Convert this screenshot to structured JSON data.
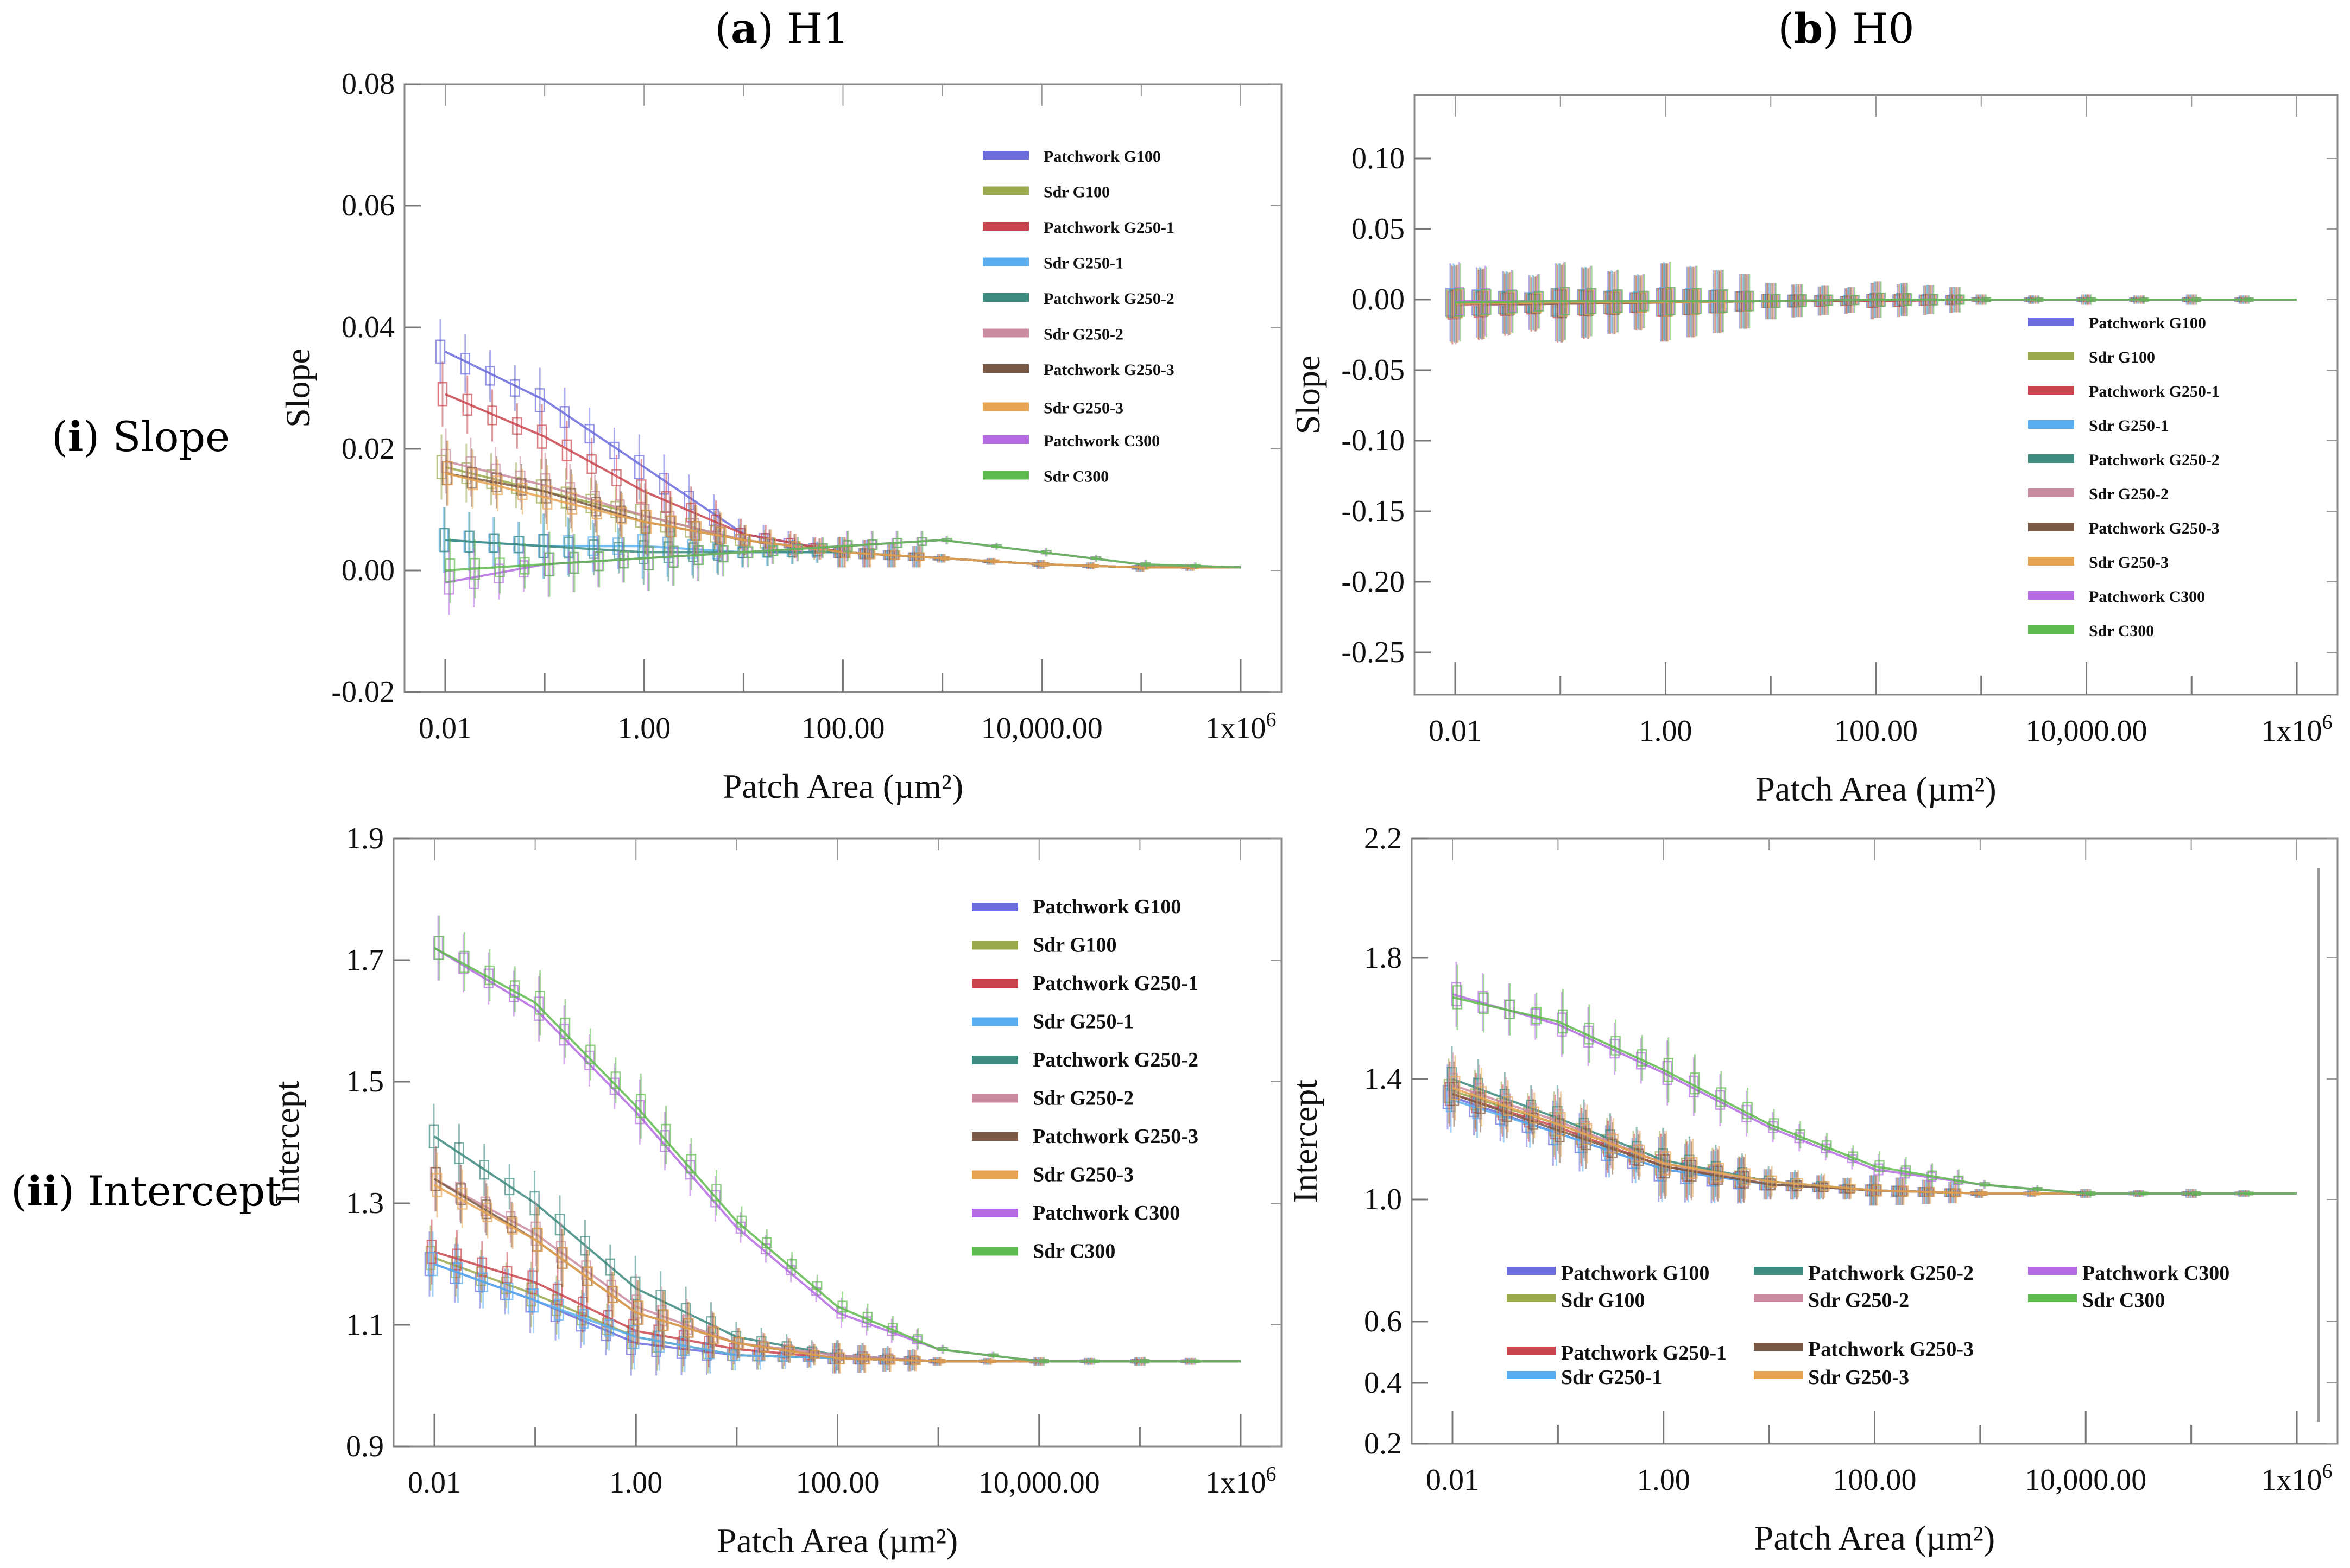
{
  "headers": {
    "col_a": {
      "letter": "a",
      "label": "H1"
    },
    "col_b": {
      "letter": "b",
      "label": "H0"
    },
    "row_i": {
      "letter": "i",
      "label": "Slope"
    },
    "row_ii": {
      "letter": "ii",
      "label": "Intercept"
    }
  },
  "colors": {
    "Patchwork G100": "#6b6bdc",
    "Sdr G100": "#9aa84e",
    "Patchwork G250-1": "#c9464f",
    "Sdr G250-1": "#58aef0",
    "Patchwork G250-2": "#3d8a7e",
    "Sdr G250-2": "#c98ba0",
    "Patchwork G250-3": "#7a5a45",
    "Sdr G250-3": "#e6a452",
    "Patchwork C300": "#b56be3",
    "Sdr C300": "#5fba4f"
  },
  "chart_data": [
    {
      "id": "slope-h1",
      "type": "line",
      "xscale": "log",
      "xlabel": "Patch Area (µm²)",
      "ylabel": "Slope",
      "xticks": [
        "0.01",
        "1.00",
        "100.00",
        "10,000.00",
        "1x10⁶"
      ],
      "yticks": [
        "-0.02",
        "0.00",
        "0.02",
        "0.04",
        "0.06",
        "0.08"
      ],
      "ylim": [
        -0.02,
        0.08
      ],
      "xlim": [
        0.01,
        1000000
      ],
      "legend": "top-right",
      "x": [
        0.01,
        0.1,
        1,
        10,
        100,
        1000,
        10000,
        100000,
        1000000
      ],
      "series": [
        {
          "name": "Patchwork G100",
          "values": [
            0.036,
            0.028,
            0.017,
            0.006,
            0.003,
            0.002,
            0.001,
            0.0005,
            0.0005
          ]
        },
        {
          "name": "Sdr G100",
          "values": [
            0.017,
            0.013,
            0.009,
            0.005,
            0.003,
            0.002,
            0.001,
            0.0005,
            0.0005
          ]
        },
        {
          "name": "Patchwork G250-1",
          "values": [
            0.029,
            0.022,
            0.013,
            0.006,
            0.003,
            0.002,
            0.001,
            0.0005,
            0.0005
          ]
        },
        {
          "name": "Sdr G250-1",
          "values": [
            0.005,
            0.004,
            0.004,
            0.003,
            0.003,
            0.002,
            0.001,
            0.0005,
            0.0005
          ]
        },
        {
          "name": "Patchwork G250-2",
          "values": [
            0.005,
            0.004,
            0.003,
            0.003,
            0.003,
            0.002,
            0.001,
            0.0005,
            0.0005
          ]
        },
        {
          "name": "Sdr G250-2",
          "values": [
            0.018,
            0.014,
            0.009,
            0.005,
            0.003,
            0.002,
            0.001,
            0.0005,
            0.0005
          ]
        },
        {
          "name": "Patchwork G250-3",
          "values": [
            0.016,
            0.013,
            0.008,
            0.005,
            0.003,
            0.002,
            0.001,
            0.0005,
            0.0005
          ]
        },
        {
          "name": "Sdr G250-3",
          "values": [
            0.016,
            0.012,
            0.008,
            0.005,
            0.003,
            0.002,
            0.001,
            0.0005,
            0.0005
          ]
        },
        {
          "name": "Patchwork C300",
          "values": [
            -0.002,
            0.001,
            0.002,
            0.003,
            0.004,
            0.005,
            0.003,
            0.001,
            0.0005
          ]
        },
        {
          "name": "Sdr C300",
          "values": [
            0.0,
            0.001,
            0.002,
            0.003,
            0.004,
            0.005,
            0.003,
            0.001,
            0.0005
          ]
        }
      ]
    },
    {
      "id": "slope-h0",
      "type": "line",
      "xscale": "log",
      "xlabel": "Patch Area (µm²)",
      "ylabel": "Slope",
      "xticks": [
        "0.01",
        "1.00",
        "100.00",
        "10,000.00",
        "1x10⁶"
      ],
      "yticks": [
        "-0.25",
        "-0.20",
        "-0.15",
        "-0.10",
        "-0.05",
        "0.00",
        "0.05",
        "0.10"
      ],
      "ylim": [
        -0.28,
        0.145
      ],
      "xlim": [
        0.01,
        1000000
      ],
      "legend": "right",
      "x": [
        0.01,
        0.1,
        1,
        10,
        100,
        1000,
        10000,
        100000,
        1000000
      ],
      "series": [
        {
          "name": "Patchwork G100",
          "values": [
            -0.002,
            -0.002,
            -0.002,
            -0.001,
            -0.001,
            0.0,
            0.0,
            0.0,
            0.0
          ]
        },
        {
          "name": "Sdr G100",
          "values": [
            -0.003,
            -0.002,
            -0.002,
            -0.001,
            -0.001,
            0.0,
            0.0,
            0.0,
            0.0
          ]
        },
        {
          "name": "Patchwork G250-1",
          "values": [
            -0.004,
            -0.003,
            -0.002,
            -0.001,
            -0.001,
            0.0,
            0.0,
            0.0,
            0.0
          ]
        },
        {
          "name": "Sdr G250-1",
          "values": [
            -0.002,
            -0.002,
            -0.001,
            -0.001,
            0.0,
            0.0,
            0.0,
            0.0,
            0.0
          ]
        },
        {
          "name": "Patchwork G250-2",
          "values": [
            -0.003,
            -0.002,
            -0.002,
            -0.001,
            0.0,
            0.0,
            0.0,
            0.0,
            0.0
          ]
        },
        {
          "name": "Sdr G250-2",
          "values": [
            -0.004,
            -0.003,
            -0.002,
            -0.001,
            0.0,
            0.0,
            0.0,
            0.0,
            0.0
          ]
        },
        {
          "name": "Patchwork G250-3",
          "values": [
            -0.003,
            -0.003,
            -0.002,
            -0.001,
            0.0,
            0.0,
            0.0,
            0.0,
            0.0
          ]
        },
        {
          "name": "Sdr G250-3",
          "values": [
            -0.003,
            -0.002,
            -0.002,
            -0.001,
            0.0,
            0.0,
            0.0,
            0.0,
            0.0
          ]
        },
        {
          "name": "Patchwork C300",
          "values": [
            -0.001,
            -0.001,
            -0.001,
            -0.001,
            0.0,
            0.0,
            0.0,
            0.0,
            0.0
          ]
        },
        {
          "name": "Sdr C300",
          "values": [
            -0.002,
            -0.001,
            -0.001,
            -0.001,
            0.0,
            0.0,
            0.0,
            0.0,
            0.0
          ]
        }
      ]
    },
    {
      "id": "intercept-h1",
      "type": "line",
      "xscale": "log",
      "xlabel": "Patch Area (µm²)",
      "ylabel": "Intercept",
      "xticks": [
        "0.01",
        "1.00",
        "100.00",
        "10,000.00",
        "1x10⁶"
      ],
      "yticks": [
        "0.9",
        "1.1",
        "1.3",
        "1.5",
        "1.7",
        "1.9"
      ],
      "ylim": [
        0.9,
        1.9
      ],
      "xlim": [
        0.01,
        1000000
      ],
      "legend": "top-right",
      "x": [
        0.01,
        0.1,
        1,
        10,
        100,
        1000,
        10000,
        100000,
        1000000
      ],
      "series": [
        {
          "name": "Patchwork G100",
          "values": [
            1.2,
            1.14,
            1.07,
            1.05,
            1.045,
            1.04,
            1.04,
            1.04,
            1.04
          ]
        },
        {
          "name": "Sdr G100",
          "values": [
            1.21,
            1.15,
            1.08,
            1.05,
            1.045,
            1.04,
            1.04,
            1.04,
            1.04
          ]
        },
        {
          "name": "Patchwork G250-1",
          "values": [
            1.22,
            1.17,
            1.09,
            1.06,
            1.045,
            1.04,
            1.04,
            1.04,
            1.04
          ]
        },
        {
          "name": "Sdr G250-1",
          "values": [
            1.2,
            1.14,
            1.08,
            1.05,
            1.045,
            1.04,
            1.04,
            1.04,
            1.04
          ]
        },
        {
          "name": "Patchwork G250-2",
          "values": [
            1.41,
            1.3,
            1.16,
            1.08,
            1.05,
            1.04,
            1.04,
            1.04,
            1.04
          ]
        },
        {
          "name": "Sdr G250-2",
          "values": [
            1.34,
            1.25,
            1.13,
            1.07,
            1.05,
            1.04,
            1.04,
            1.04,
            1.04
          ]
        },
        {
          "name": "Patchwork G250-3",
          "values": [
            1.34,
            1.24,
            1.12,
            1.07,
            1.045,
            1.04,
            1.04,
            1.04,
            1.04
          ]
        },
        {
          "name": "Sdr G250-3",
          "values": [
            1.33,
            1.24,
            1.12,
            1.07,
            1.045,
            1.04,
            1.04,
            1.04,
            1.04
          ]
        },
        {
          "name": "Patchwork C300",
          "values": [
            1.72,
            1.62,
            1.45,
            1.26,
            1.12,
            1.06,
            1.04,
            1.04,
            1.04
          ]
        },
        {
          "name": "Sdr C300",
          "values": [
            1.72,
            1.63,
            1.46,
            1.27,
            1.13,
            1.06,
            1.04,
            1.04,
            1.04
          ]
        }
      ]
    },
    {
      "id": "intercept-h0",
      "type": "line",
      "xscale": "log",
      "xlabel": "Patch Area (µm²)",
      "ylabel": "Intercept",
      "xticks": [
        "0.01",
        "1.00",
        "100.00",
        "10,000.00",
        "1x10⁶"
      ],
      "yticks": [
        "0.2",
        "0.4",
        "0.6",
        "1.0",
        "1.4",
        "1.8",
        "2.2"
      ],
      "ylim": [
        0.2,
        2.2
      ],
      "xlim": [
        0.01,
        1000000
      ],
      "legend": "bottom",
      "x": [
        0.01,
        0.1,
        1,
        10,
        100,
        1000,
        10000,
        100000,
        1000000
      ],
      "series": [
        {
          "name": "Patchwork G100",
          "values": [
            1.34,
            1.22,
            1.1,
            1.05,
            1.03,
            1.02,
            1.02,
            1.02,
            1.02
          ]
        },
        {
          "name": "Sdr G100",
          "values": [
            1.36,
            1.25,
            1.12,
            1.05,
            1.03,
            1.02,
            1.02,
            1.02,
            1.02
          ]
        },
        {
          "name": "Patchwork G250-1",
          "values": [
            1.35,
            1.24,
            1.11,
            1.05,
            1.03,
            1.02,
            1.02,
            1.02,
            1.02
          ]
        },
        {
          "name": "Sdr G250-1",
          "values": [
            1.33,
            1.22,
            1.1,
            1.05,
            1.03,
            1.02,
            1.02,
            1.02,
            1.02
          ]
        },
        {
          "name": "Patchwork G250-2",
          "values": [
            1.4,
            1.27,
            1.13,
            1.06,
            1.03,
            1.02,
            1.02,
            1.02,
            1.02
          ]
        },
        {
          "name": "Sdr G250-2",
          "values": [
            1.38,
            1.26,
            1.12,
            1.05,
            1.03,
            1.02,
            1.02,
            1.02,
            1.02
          ]
        },
        {
          "name": "Patchwork G250-3",
          "values": [
            1.35,
            1.23,
            1.11,
            1.05,
            1.03,
            1.02,
            1.02,
            1.02,
            1.02
          ]
        },
        {
          "name": "Sdr G250-3",
          "values": [
            1.37,
            1.25,
            1.12,
            1.06,
            1.03,
            1.02,
            1.02,
            1.02,
            1.02
          ]
        },
        {
          "name": "Patchwork C300",
          "values": [
            1.68,
            1.58,
            1.42,
            1.24,
            1.1,
            1.05,
            1.02,
            1.02,
            1.02
          ]
        },
        {
          "name": "Sdr C300",
          "values": [
            1.67,
            1.59,
            1.43,
            1.25,
            1.11,
            1.05,
            1.02,
            1.02,
            1.02
          ]
        }
      ]
    }
  ]
}
